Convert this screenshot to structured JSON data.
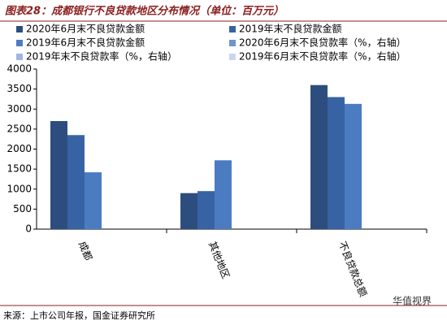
{
  "chart_data": {
    "type": "bar",
    "title": "图表28：成都银行不良贷款地区分布情况（单位：百万元）",
    "categories": [
      "成都",
      "其他地区",
      "不良贷款总额"
    ],
    "series": [
      {
        "name": "2020年6月末不良贷款金额",
        "color": "#2d4d7e",
        "values": [
          2700,
          900,
          3600
        ]
      },
      {
        "name": "2019年末不良贷款金额",
        "color": "#3763a4",
        "values": [
          2350,
          950,
          3300
        ]
      },
      {
        "name": "2019年6月末不良贷款金额",
        "color": "#4b7cc2",
        "values": [
          1420,
          1720,
          3130
        ]
      },
      {
        "name": "2020年6月末不良贷款率（%，右轴）",
        "color": "#6f95cf",
        "axis": "y2",
        "values": [
          null,
          null,
          null
        ]
      },
      {
        "name": "2019年末不良贷款率（%，右轴）",
        "color": "#9fb6df",
        "axis": "y2",
        "values": [
          null,
          null,
          null
        ]
      },
      {
        "name": "2019年6月末不良贷款率（%，右轴）",
        "color": "#c9d6ee",
        "axis": "y2",
        "values": [
          null,
          null,
          null
        ]
      }
    ],
    "ylim": [
      0,
      4000
    ],
    "yticks": [
      0,
      500,
      1000,
      1500,
      2000,
      2500,
      3000,
      3500,
      4000
    ],
    "source": "来源：上市公司年报，国金证券研究所",
    "watermark": "华值视界"
  }
}
